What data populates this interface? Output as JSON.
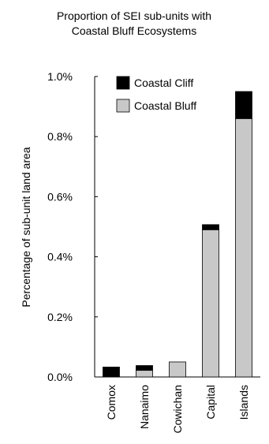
{
  "chart_data": {
    "type": "bar",
    "stacked": true,
    "title_lines": [
      "Proportion of SEI sub-units with",
      "Coastal Bluff Ecosystems"
    ],
    "ylabel": "Percentage of sub-unit land area",
    "xlabel": "",
    "categories": [
      "Comox",
      "Nanaimo",
      "Cowichan",
      "Capital",
      "Islands"
    ],
    "y_ticks": [
      0.0,
      0.2,
      0.4,
      0.6,
      0.8,
      1.0
    ],
    "y_tick_labels": [
      "0.0%",
      "0.2%",
      "0.4%",
      "0.6%",
      "0.8%",
      "1.0%"
    ],
    "ylim": [
      0,
      1.0
    ],
    "series": [
      {
        "name": "Coastal Bluff",
        "color": "#c8c8c8",
        "values": [
          0.0,
          0.022,
          0.05,
          0.49,
          0.86
        ]
      },
      {
        "name": "Coastal Cliff",
        "color": "#000000",
        "values": [
          0.033,
          0.016,
          0.0,
          0.017,
          0.09
        ]
      }
    ],
    "legend": {
      "placement": "top-left",
      "order": [
        "Coastal Cliff",
        "Coastal Bluff"
      ]
    },
    "grid": false
  }
}
